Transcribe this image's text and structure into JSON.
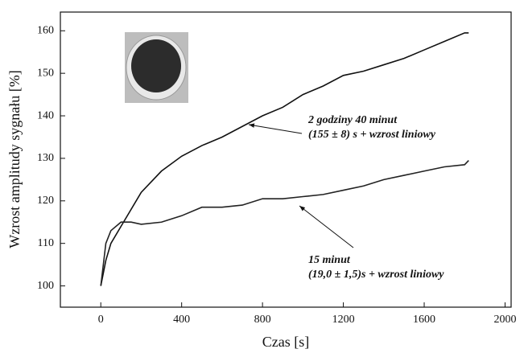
{
  "chart_data": {
    "type": "line",
    "xlabel": "Czas [s]",
    "ylabel": "Wzrost amplitudy sygnału [%]",
    "x": [
      0,
      25,
      50,
      100,
      150,
      200,
      300,
      400,
      500,
      600,
      700,
      800,
      900,
      1000,
      1100,
      1200,
      1300,
      1400,
      1500,
      1600,
      1700,
      1800,
      1820
    ],
    "series": [
      {
        "color": "#111111",
        "values": [
          100,
          106,
          110,
          114,
          118,
          122,
          127,
          130.5,
          133,
          135,
          137.5,
          140,
          142,
          145,
          147,
          149.5,
          150.5,
          152,
          153.5,
          155.5,
          157.5,
          159.5,
          159.5
        ]
      },
      {
        "color": "#222222",
        "values": [
          100,
          110,
          113,
          115,
          115,
          114.5,
          115,
          116.5,
          118.5,
          118.5,
          119,
          120.5,
          120.5,
          121,
          121.5,
          122.5,
          123.5,
          125,
          126,
          127,
          128,
          128.5,
          129.5
        ]
      }
    ],
    "annotations": [
      [
        "2 godziny 40 minut",
        "(155 ± 8) s + wzrost liniowy"
      ],
      [
        "15 minut",
        "(19,0  ± 1,5)s + wzrost liniowy"
      ]
    ],
    "xlim": [
      -200,
      2030
    ],
    "ylim": [
      95,
      164.4
    ],
    "xticks": [
      0,
      400,
      800,
      1200,
      1600,
      2000
    ],
    "yticks": [
      100,
      110,
      120,
      130,
      140,
      150,
      160
    ]
  }
}
